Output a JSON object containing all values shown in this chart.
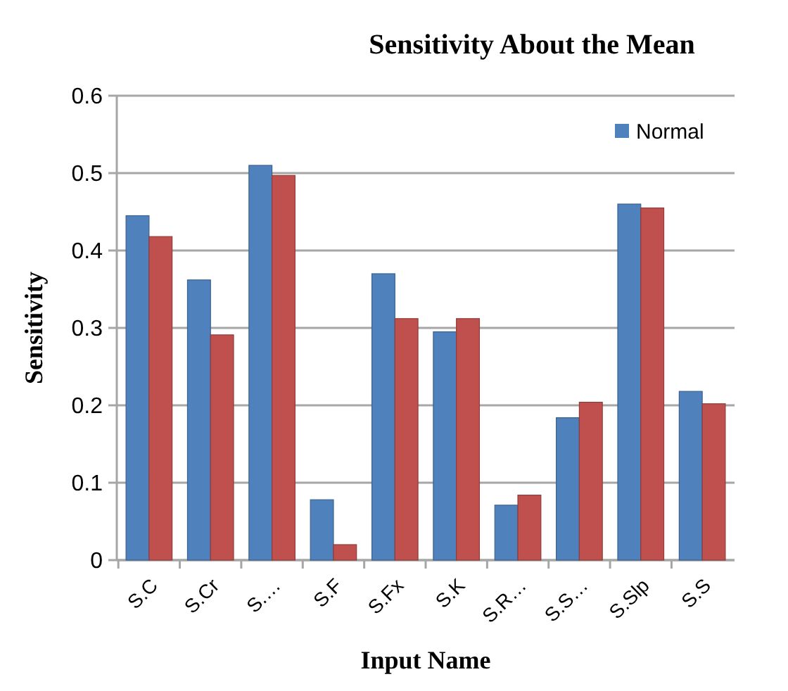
{
  "chart_data": {
    "type": "bar",
    "title": "Sensitivity About the Mean",
    "xlabel": "Input Name",
    "ylabel": "Sensitivity",
    "categories": [
      "S.C",
      "S.Cr",
      "S.…",
      "S.F",
      "S.Fx",
      "S.K",
      "S.R…",
      "S.S…",
      "S.Slp",
      "S.S"
    ],
    "series": [
      {
        "name": "Normal",
        "color": "#4f81bd",
        "values": [
          0.445,
          0.362,
          0.51,
          0.078,
          0.37,
          0.295,
          0.071,
          0.184,
          0.46,
          0.218
        ]
      },
      {
        "color": "#c0504d",
        "values": [
          0.418,
          0.291,
          0.497,
          0.02,
          0.312,
          0.312,
          0.084,
          0.204,
          0.455,
          0.202
        ]
      }
    ],
    "ylim": [
      0,
      0.6
    ],
    "yticks": [
      0,
      0.1,
      0.2,
      0.3,
      0.4,
      0.5,
      0.6
    ],
    "grid": "y",
    "legend": "top right"
  }
}
